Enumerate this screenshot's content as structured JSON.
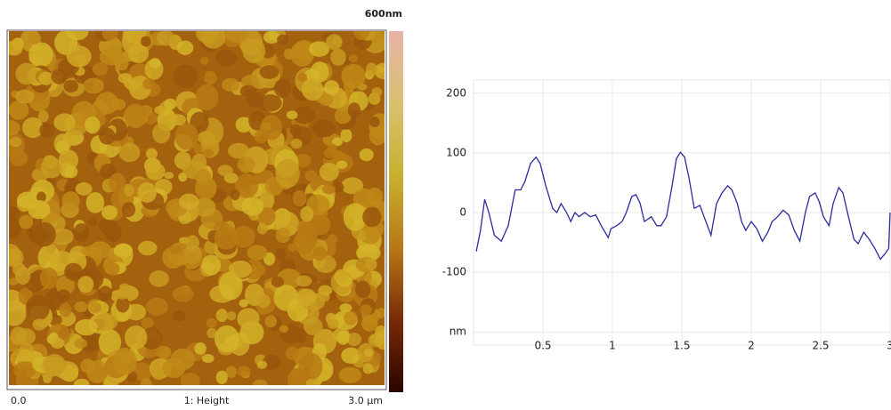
{
  "image_panel": {
    "scale_max": "600nm",
    "x_start": "0.0",
    "channel": "1: Height",
    "x_end": "3.0 µm"
  },
  "chart_data": {
    "type": "line",
    "x": [
      0.02,
      0.05,
      0.08,
      0.11,
      0.15,
      0.2,
      0.25,
      0.3,
      0.34,
      0.37,
      0.41,
      0.45,
      0.48,
      0.52,
      0.57,
      0.6,
      0.63,
      0.67,
      0.7,
      0.73,
      0.76,
      0.8,
      0.84,
      0.88,
      0.92,
      0.97,
      0.99,
      1.03,
      1.07,
      1.1,
      1.14,
      1.17,
      1.2,
      1.23,
      1.28,
      1.32,
      1.35,
      1.39,
      1.43,
      1.46,
      1.49,
      1.52,
      1.55,
      1.59,
      1.63,
      1.66,
      1.71,
      1.75,
      1.79,
      1.83,
      1.86,
      1.9,
      1.93,
      1.96,
      2.0,
      2.04,
      2.08,
      2.12,
      2.15,
      2.19,
      2.23,
      2.27,
      2.31,
      2.35,
      2.39,
      2.42,
      2.46,
      2.49,
      2.52,
      2.56,
      2.59,
      2.63,
      2.66,
      2.7,
      2.74,
      2.77,
      2.81,
      2.85,
      2.89,
      2.93,
      2.97,
      2.99,
      3.0
    ],
    "values": [
      -65,
      -30,
      22,
      0,
      -38,
      -48,
      -22,
      38,
      38,
      52,
      82,
      93,
      82,
      45,
      7,
      0,
      15,
      0,
      -15,
      0,
      -7,
      0,
      -7,
      -4,
      -22,
      -42,
      -27,
      -22,
      -15,
      0,
      27,
      30,
      15,
      -15,
      -7,
      -22,
      -22,
      -7,
      45,
      90,
      101,
      93,
      60,
      7,
      12,
      -7,
      -38,
      15,
      33,
      45,
      38,
      15,
      -15,
      -30,
      -15,
      -27,
      -48,
      -33,
      -15,
      -7,
      4,
      -4,
      -30,
      -48,
      0,
      27,
      33,
      18,
      -7,
      -22,
      15,
      42,
      33,
      -7,
      -45,
      -52,
      -33,
      -45,
      -60,
      -78,
      -67,
      -60,
      0
    ],
    "color": "#2b2b9b",
    "xlim": [
      0,
      3
    ],
    "xticks": [
      0.5,
      1,
      1.5,
      2,
      2.5,
      3
    ],
    "ylim": [
      -222,
      222
    ],
    "yticks": [
      200,
      100,
      0,
      -100,
      {
        "value": -200,
        "label": "nm"
      }
    ],
    "grid": true
  }
}
